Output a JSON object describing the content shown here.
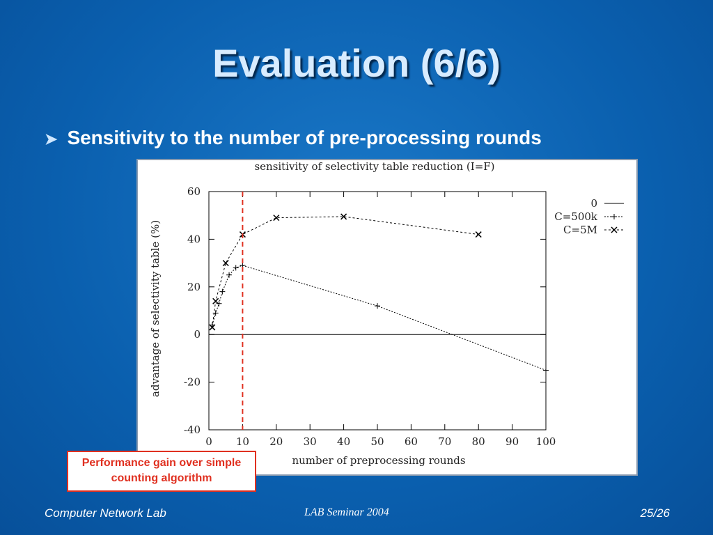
{
  "slide": {
    "title": "Evaluation (6/6)",
    "bullet": "Sensitivity to the number of pre-processing rounds",
    "callout": "Performance gain over simple counting algorithm",
    "footer_left": "Computer Network Lab",
    "footer_center": "LAB Seminar 2004",
    "footer_right": "25/26"
  },
  "chart_data": {
    "type": "line",
    "title": "sensitivity of selectivity table reduction (I=F)",
    "x_label": "number of preprocessing rounds",
    "y_label": "advantage of selectivity table (%)",
    "xlim": [
      0,
      100
    ],
    "ylim": [
      -40,
      60
    ],
    "xticks": [
      0,
      10,
      20,
      30,
      40,
      50,
      60,
      70,
      80,
      90,
      100
    ],
    "yticks": [
      -40,
      -20,
      0,
      20,
      40,
      60
    ],
    "vline": 10,
    "vline_color": "#e03020",
    "series": [
      {
        "name": "0",
        "color": "#000000",
        "x": [
          0,
          100
        ],
        "values": [
          0,
          0
        ]
      },
      {
        "name": "C=500k",
        "color": "#000000",
        "x": [
          1,
          2,
          3,
          4,
          6,
          8,
          10,
          50,
          100
        ],
        "values": [
          4,
          9,
          13,
          18,
          25,
          28,
          29,
          12,
          -15
        ]
      },
      {
        "name": "C=5M",
        "color": "#000000",
        "x": [
          1,
          2,
          5,
          10,
          20,
          40,
          80
        ],
        "values": [
          3,
          14,
          30,
          42,
          49,
          49.5,
          42
        ]
      }
    ]
  }
}
